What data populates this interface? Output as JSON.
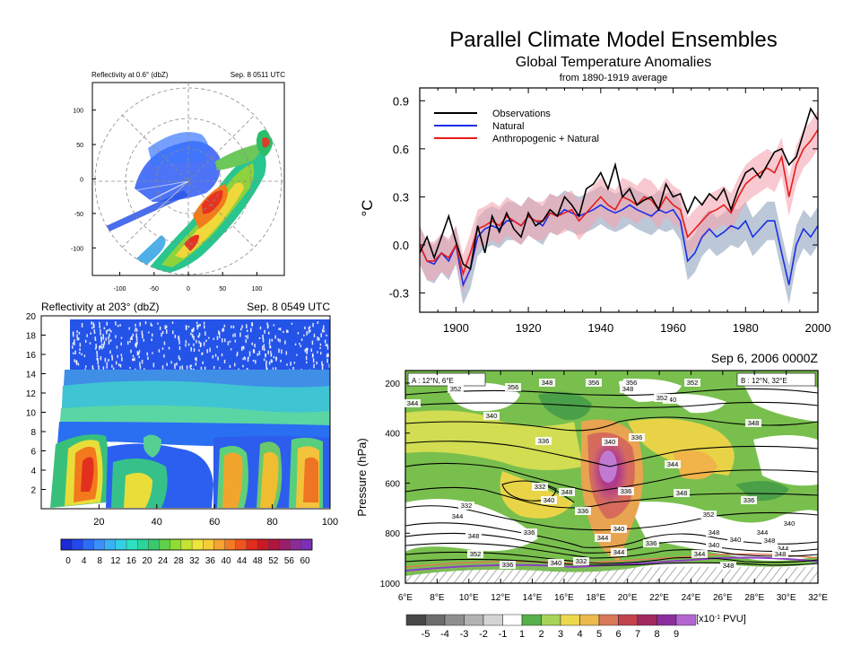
{
  "chart_data": [
    {
      "type": "polar-radar",
      "title_left": "Reflectivity at 0.6° (dbZ)",
      "title_right": "Sep. 8 0511 UTC",
      "xticks": [
        -100,
        -50,
        0,
        50,
        100
      ],
      "yticks": [
        100,
        50,
        0,
        -50,
        -100
      ],
      "xlim": [
        -140,
        140
      ],
      "ylim": [
        -140,
        140
      ]
    },
    {
      "type": "heatmap",
      "title_left": "Reflectivity at 203° (dbZ)",
      "title_right": "Sep. 8 0549 UTC",
      "xticks": [
        20,
        40,
        60,
        80,
        100
      ],
      "yticks": [
        2,
        4,
        6,
        8,
        10,
        12,
        14,
        16,
        18,
        20
      ],
      "xlim": [
        0,
        100
      ],
      "ylim": [
        0,
        20
      ],
      "colorbar_ticks": [
        0,
        4,
        8,
        12,
        16,
        20,
        24,
        28,
        32,
        36,
        40,
        44,
        48,
        52,
        56,
        60
      ]
    },
    {
      "type": "line",
      "title": "Parallel Climate Model Ensembles",
      "subtitle": "Global Temperature Anomalies",
      "subtitle2": "from 1890-1919 average",
      "ylabel": "°C",
      "xlim": [
        1890,
        2000
      ],
      "ylim": [
        -0.42,
        0.98
      ],
      "xticks": [
        1900,
        1920,
        1940,
        1960,
        1980,
        2000
      ],
      "yticks": [
        0.9,
        0.6,
        0.3,
        0.0,
        -0.3
      ],
      "ytick_labels": [
        "0.9",
        "0.6",
        "0.3",
        "0.0",
        "-0.3"
      ],
      "years": [
        1890,
        1892,
        1894,
        1896,
        1898,
        1900,
        1902,
        1904,
        1906,
        1908,
        1910,
        1912,
        1914,
        1916,
        1918,
        1920,
        1922,
        1924,
        1926,
        1928,
        1930,
        1932,
        1934,
        1936,
        1938,
        1940,
        1942,
        1944,
        1946,
        1948,
        1950,
        1952,
        1954,
        1956,
        1958,
        1960,
        1962,
        1964,
        1966,
        1968,
        1970,
        1972,
        1974,
        1976,
        1978,
        1980,
        1982,
        1984,
        1986,
        1988,
        1990,
        1992,
        1994,
        1996,
        1998,
        2000
      ],
      "series": [
        {
          "name": "Observations",
          "color": "#000000",
          "values": [
            -0.05,
            0.05,
            -0.08,
            0.05,
            0.18,
            0.02,
            -0.12,
            -0.15,
            0.12,
            -0.05,
            0.18,
            0.08,
            0.2,
            0.1,
            0.05,
            0.2,
            0.12,
            0.15,
            0.22,
            0.18,
            0.3,
            0.25,
            0.18,
            0.35,
            0.38,
            0.45,
            0.35,
            0.5,
            0.3,
            0.35,
            0.25,
            0.28,
            0.3,
            0.22,
            0.38,
            0.3,
            0.32,
            0.2,
            0.3,
            0.25,
            0.32,
            0.28,
            0.35,
            0.22,
            0.35,
            0.45,
            0.48,
            0.42,
            0.5,
            0.58,
            0.6,
            0.5,
            0.55,
            0.7,
            0.85,
            0.78
          ]
        },
        {
          "name": "Natural",
          "color": "#1a2ee6",
          "values": [
            0.0,
            -0.1,
            -0.12,
            -0.05,
            -0.1,
            0.0,
            -0.25,
            -0.15,
            0.05,
            0.1,
            0.12,
            0.1,
            0.15,
            0.15,
            0.12,
            0.18,
            0.15,
            0.12,
            0.2,
            0.18,
            0.22,
            0.2,
            0.18,
            0.2,
            0.22,
            0.25,
            0.22,
            0.2,
            0.22,
            0.25,
            0.22,
            0.2,
            0.18,
            0.22,
            0.2,
            0.22,
            0.15,
            -0.1,
            -0.05,
            0.05,
            0.1,
            0.05,
            0.08,
            0.12,
            0.1,
            0.15,
            0.05,
            0.1,
            0.15,
            0.15,
            -0.05,
            -0.25,
            0.0,
            0.1,
            0.05,
            0.12
          ]
        },
        {
          "name": "Anthropogenic + Natural",
          "color": "#e81b1b",
          "values": [
            0.0,
            -0.1,
            -0.1,
            -0.05,
            -0.08,
            0.0,
            -0.18,
            -0.05,
            0.1,
            0.12,
            0.15,
            0.12,
            0.18,
            0.15,
            0.12,
            0.18,
            0.15,
            0.15,
            0.2,
            0.18,
            0.2,
            0.22,
            0.15,
            0.2,
            0.25,
            0.3,
            0.25,
            0.22,
            0.3,
            0.28,
            0.25,
            0.3,
            0.28,
            0.22,
            0.3,
            0.25,
            0.22,
            0.05,
            0.1,
            0.15,
            0.2,
            0.22,
            0.25,
            0.2,
            0.3,
            0.38,
            0.42,
            0.45,
            0.48,
            0.45,
            0.55,
            0.3,
            0.5,
            0.6,
            0.65,
            0.72
          ]
        }
      ],
      "legend_position": "top-left"
    },
    {
      "type": "contour-section",
      "title_right": "Sep 6, 2006 0000Z",
      "label_left": "A : 12°N, 6°E",
      "label_right": "B : 12°N, 32°E",
      "ylabel": "Pressure (hPa)",
      "xticks": [
        "6°E",
        "8°E",
        "10°E",
        "12°E",
        "14°E",
        "16°E",
        "18°E",
        "20°E",
        "22°E",
        "24°E",
        "26°E",
        "28°E",
        "30°E",
        "32°E"
      ],
      "yticks": [
        200,
        400,
        600,
        800,
        1000
      ],
      "xlim": [
        6,
        32
      ],
      "ylim": [
        1000,
        150
      ],
      "contour_labels": [
        "344",
        "340",
        "336",
        "332",
        "332",
        "336",
        "340",
        "336",
        "340",
        "344",
        "348",
        "352",
        "348",
        "336",
        "340",
        "344",
        "348",
        "344",
        "340",
        "336",
        "340",
        "336",
        "344",
        "348",
        "352",
        "356",
        "352",
        "348",
        "356",
        "356",
        "352",
        "348",
        "352",
        "348",
        "344",
        "332",
        "340",
        "336",
        "340",
        "344",
        "348",
        "348",
        "344",
        "348",
        "340",
        "336"
      ],
      "colorbar_ticks": [
        "-5",
        "-4",
        "-3",
        "-2",
        "-1",
        "1",
        "2",
        "3",
        "4",
        "5",
        "6",
        "7",
        "8",
        "9"
      ],
      "colorbar_unit": "[x10",
      "colorbar_exp": "-1",
      "colorbar_unit2": " PVU]"
    }
  ]
}
